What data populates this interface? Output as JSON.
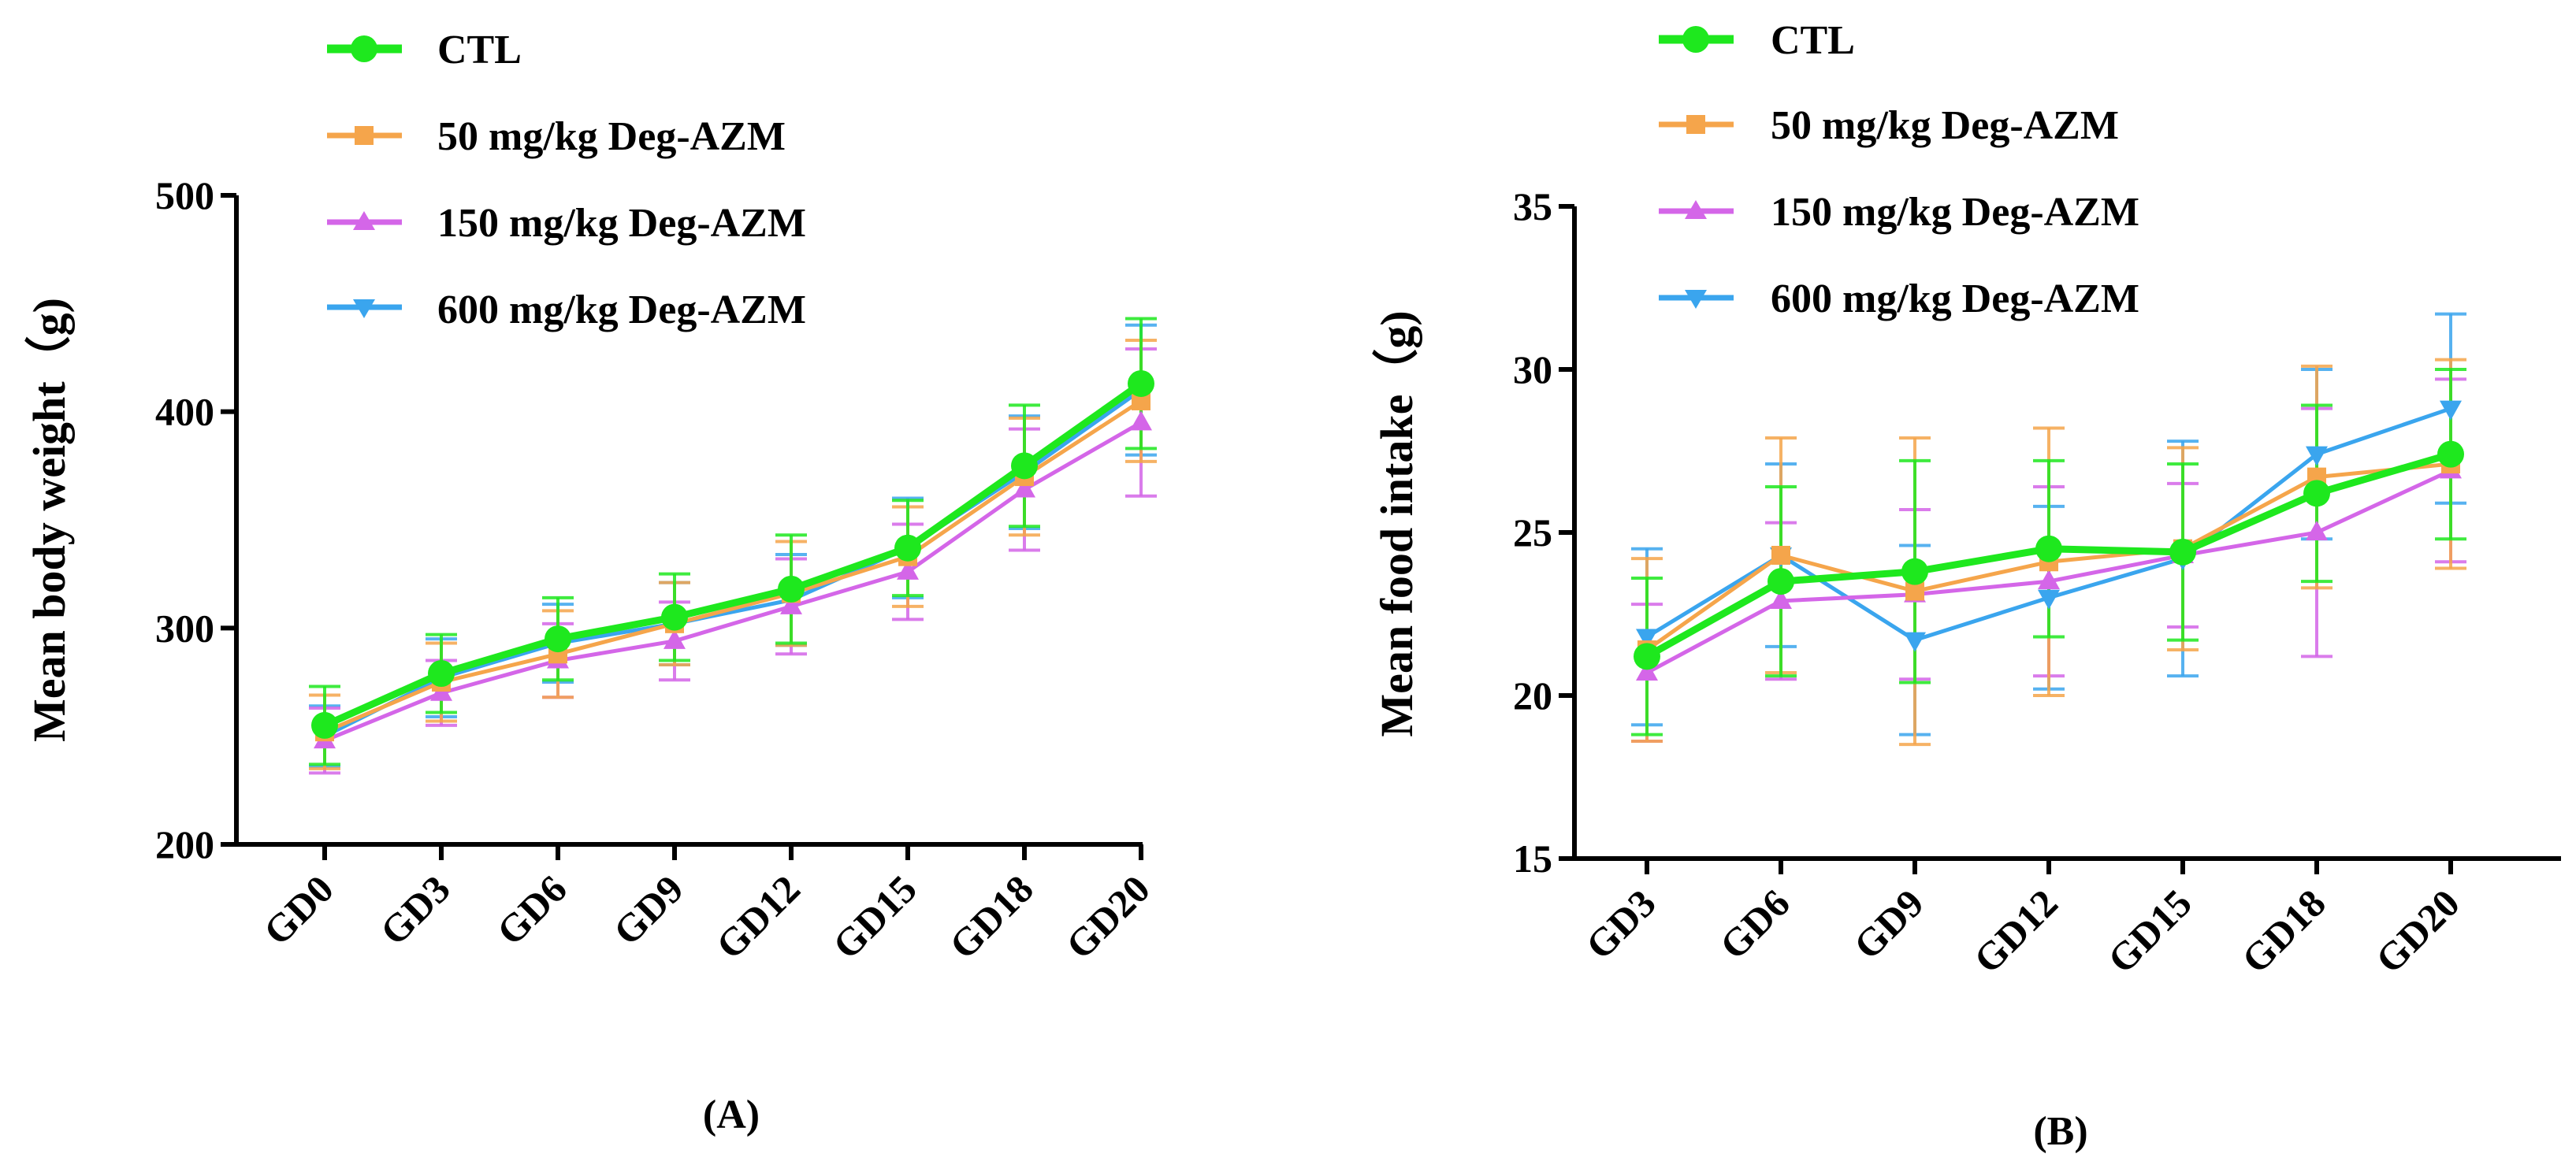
{
  "colors": {
    "ctl": "#1ee81e",
    "mg50": "#f5a54b",
    "mg150": "#d466e8",
    "mg600": "#3aa5ee",
    "axis": "#000000"
  },
  "chart_data": [
    {
      "type": "line",
      "title": "",
      "panel_label": "(A)",
      "xlabel": "",
      "ylabel": "Mean body weight（g)",
      "categories": [
        "GD0",
        "GD3",
        "GD6",
        "GD9",
        "GD12",
        "GD15",
        "GD18",
        "GD20"
      ],
      "ylim": [
        200,
        500
      ],
      "yticks": [
        "200",
        "300",
        "400",
        "500"
      ],
      "error_bars": true,
      "legend_position": "top-left",
      "series": [
        {
          "name": "CTL",
          "marker": "circle",
          "color_key": "ctl",
          "values": [
            255,
            279,
            295,
            305,
            318,
            337,
            375,
            413
          ],
          "errors": [
            18,
            18,
            19,
            20,
            25,
            22,
            28,
            30
          ]
        },
        {
          "name": "50 mg/kg Deg-AZM",
          "marker": "square",
          "color_key": "mg50",
          "values": [
            252,
            275,
            288,
            302,
            316,
            333,
            370,
            405
          ],
          "errors": [
            17,
            18,
            20,
            19,
            24,
            23,
            27,
            28
          ]
        },
        {
          "name": "150 mg/kg Deg-AZM",
          "marker": "triangle-up",
          "color_key": "mg150",
          "values": [
            248,
            270,
            285,
            294,
            310,
            326,
            364,
            395
          ],
          "errors": [
            15,
            15,
            17,
            18,
            22,
            22,
            28,
            34
          ]
        },
        {
          "name": "600 mg/kg Deg-AZM",
          "marker": "triangle-down",
          "color_key": "mg600",
          "values": [
            250,
            277,
            293,
            302,
            313,
            337,
            372,
            410
          ],
          "errors": [
            14,
            18,
            18,
            19,
            21,
            23,
            26,
            30
          ]
        }
      ]
    },
    {
      "type": "line",
      "title": "",
      "panel_label": "(B)",
      "xlabel": "",
      "ylabel": "Mean food intake（g)",
      "categories": [
        "GD3",
        "GD6",
        "GD9",
        "GD12",
        "GD15",
        "GD18",
        "GD20"
      ],
      "ylim": [
        15,
        35
      ],
      "yticks": [
        "15",
        "20",
        "25",
        "30",
        "35"
      ],
      "error_bars": true,
      "legend_position": "top-left",
      "series": [
        {
          "name": "CTL",
          "marker": "circle",
          "color_key": "ctl",
          "values": [
            21.2,
            23.5,
            23.8,
            24.5,
            24.4,
            26.2,
            27.4
          ],
          "errors": [
            2.4,
            2.9,
            3.4,
            2.7,
            2.7,
            2.7,
            2.6
          ]
        },
        {
          "name": "50 mg/kg Deg-AZM",
          "marker": "square",
          "color_key": "mg50",
          "values": [
            21.4,
            24.3,
            23.2,
            24.1,
            24.5,
            26.7,
            27.1
          ],
          "errors": [
            2.8,
            3.6,
            4.7,
            4.1,
            3.1,
            3.4,
            3.2
          ]
        },
        {
          "name": "150 mg/kg Deg-AZM",
          "marker": "triangle-up",
          "color_key": "mg150",
          "values": [
            20.7,
            22.9,
            23.1,
            23.5,
            24.3,
            25.0,
            26.9
          ],
          "errors": [
            2.1,
            2.4,
            2.6,
            2.9,
            2.2,
            3.8,
            2.8
          ]
        },
        {
          "name": "600 mg/kg Deg-AZM",
          "marker": "triangle-down",
          "color_key": "mg600",
          "values": [
            21.8,
            24.3,
            21.7,
            23.0,
            24.2,
            27.4,
            28.8
          ],
          "errors": [
            2.7,
            2.8,
            2.9,
            2.8,
            3.6,
            2.6,
            2.9
          ]
        }
      ]
    }
  ]
}
